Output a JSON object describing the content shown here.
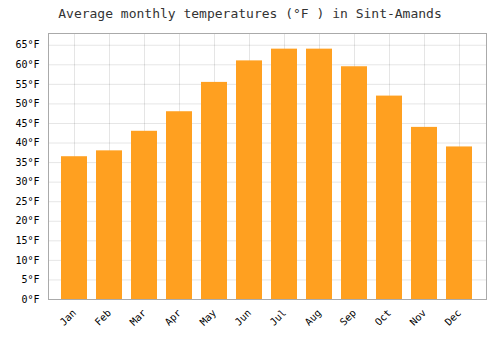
{
  "chart_data": {
    "type": "bar",
    "title": "Average monthly temperatures (°F ) in Sint-Amands",
    "categories": [
      "Jan",
      "Feb",
      "Mar",
      "Apr",
      "May",
      "Jun",
      "Jul",
      "Aug",
      "Sep",
      "Oct",
      "Nov",
      "Dec"
    ],
    "values": [
      36.5,
      38.0,
      43.0,
      48.0,
      55.5,
      61.0,
      64.0,
      64.0,
      59.5,
      52.0,
      44.0,
      39.0
    ],
    "color": "#FFA020",
    "ylim": [
      0,
      68
    ],
    "yticks": [
      {
        "value": 0,
        "label": "0°F"
      },
      {
        "value": 5,
        "label": "5°F"
      },
      {
        "value": 10,
        "label": "10°F"
      },
      {
        "value": 15,
        "label": "15°F"
      },
      {
        "value": 20,
        "label": "20°F"
      },
      {
        "value": 25,
        "label": "25°F"
      },
      {
        "value": 30,
        "label": "30°F"
      },
      {
        "value": 35,
        "label": "35°F"
      },
      {
        "value": 40,
        "label": "40°F"
      },
      {
        "value": 45,
        "label": "45°F"
      },
      {
        "value": 50,
        "label": "50°F"
      },
      {
        "value": 55,
        "label": "55°F"
      },
      {
        "value": 60,
        "label": "60°F"
      },
      {
        "value": 65,
        "label": "65°F"
      }
    ],
    "grid": true
  }
}
